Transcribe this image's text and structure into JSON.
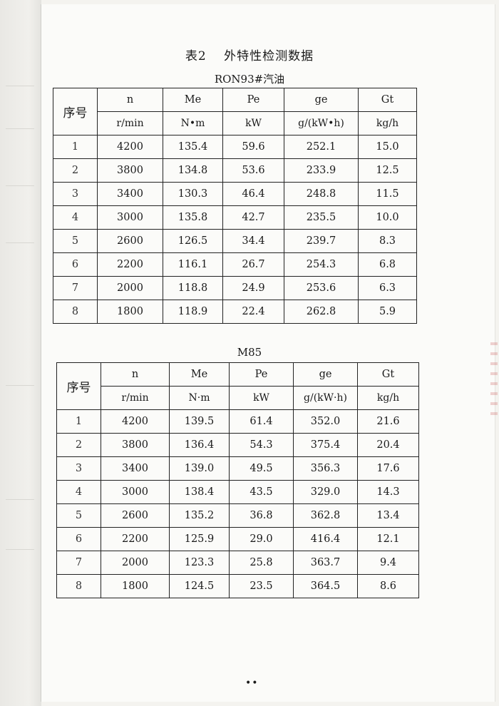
{
  "title": "表2　 外特性检测数据",
  "table1": {
    "caption": "RON93#汽油",
    "headers": [
      "序号",
      "n",
      "Me",
      "Pe",
      "ge",
      "Gt"
    ],
    "units": [
      "r/min",
      "N•m",
      "kW",
      "g/(kW•h)",
      "kg/h"
    ],
    "rows": [
      [
        "1",
        "4200",
        "135.4",
        "59.6",
        "252.1",
        "15.0"
      ],
      [
        "2",
        "3800",
        "134.8",
        "53.6",
        "233.9",
        "12.5"
      ],
      [
        "3",
        "3400",
        "130.3",
        "46.4",
        "248.8",
        "11.5"
      ],
      [
        "4",
        "3000",
        "135.8",
        "42.7",
        "235.5",
        "10.0"
      ],
      [
        "5",
        "2600",
        "126.5",
        "34.4",
        "239.7",
        "8.3"
      ],
      [
        "6",
        "2200",
        "116.1",
        "26.7",
        "254.3",
        "6.8"
      ],
      [
        "7",
        "2000",
        "118.8",
        "24.9",
        "253.6",
        "6.3"
      ],
      [
        "8",
        "1800",
        "118.9",
        "22.4",
        "262.8",
        "5.9"
      ]
    ]
  },
  "table2": {
    "caption": "M85",
    "headers": [
      "序号",
      "n",
      "Me",
      "Pe",
      "ge",
      "Gt"
    ],
    "units": [
      "r/min",
      "N·m",
      "kW",
      "g/(kW·h)",
      "kg/h"
    ],
    "rows": [
      [
        "1",
        "4200",
        "139.5",
        "61.4",
        "352.0",
        "21.6"
      ],
      [
        "2",
        "3800",
        "136.4",
        "54.3",
        "375.4",
        "20.4"
      ],
      [
        "3",
        "3400",
        "139.0",
        "49.5",
        "356.3",
        "17.6"
      ],
      [
        "4",
        "3000",
        "138.4",
        "43.5",
        "329.0",
        "14.3"
      ],
      [
        "5",
        "2600",
        "135.2",
        "36.8",
        "362.8",
        "13.4"
      ],
      [
        "6",
        "2200",
        "125.9",
        "29.0",
        "416.4",
        "12.1"
      ],
      [
        "7",
        "2000",
        "123.3",
        "25.8",
        "363.7",
        "9.4"
      ],
      [
        "8",
        "1800",
        "124.5",
        "23.5",
        "364.5",
        "8.6"
      ]
    ]
  },
  "footer": "••"
}
